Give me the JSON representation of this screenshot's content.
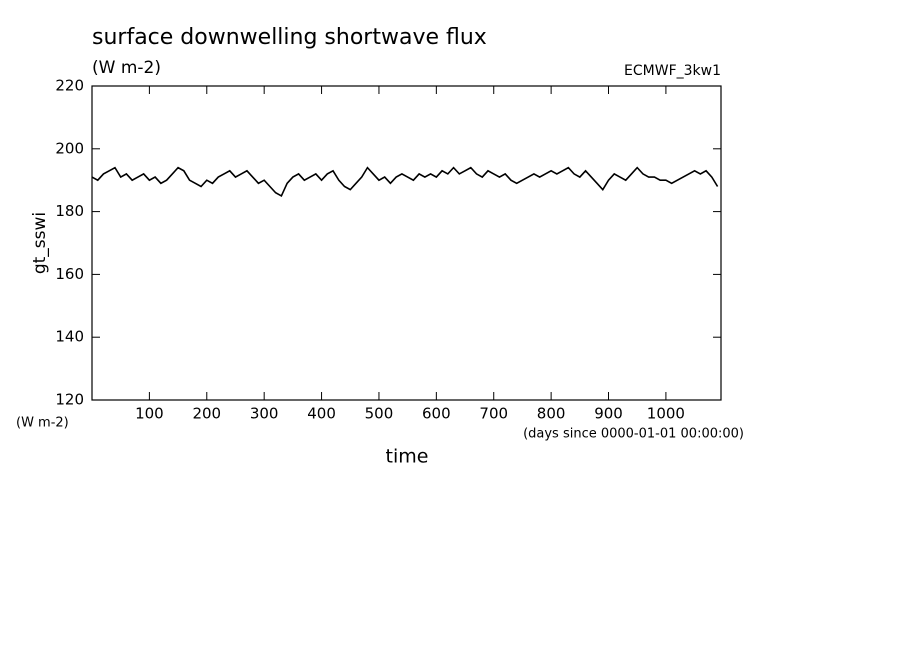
{
  "chart_data": {
    "type": "line",
    "title": "surface downwelling shortwave flux",
    "subtitle": "(W m-2)",
    "annotation": "ECMWF_3kw1",
    "ylabel": "gt_sswi",
    "y_unit": "(W m-2)",
    "xlabel": "time",
    "x_unit": "(days since 0000-01-01 00:00:00)",
    "color": "#000000",
    "x": [
      0,
      10,
      20,
      30,
      40,
      50,
      60,
      70,
      80,
      90,
      100,
      110,
      120,
      130,
      140,
      150,
      160,
      170,
      180,
      190,
      200,
      210,
      220,
      230,
      240,
      250,
      260,
      270,
      280,
      290,
      300,
      310,
      320,
      330,
      340,
      350,
      360,
      370,
      380,
      390,
      400,
      410,
      420,
      430,
      440,
      450,
      460,
      470,
      480,
      490,
      500,
      510,
      520,
      530,
      540,
      550,
      560,
      570,
      580,
      590,
      600,
      610,
      620,
      630,
      640,
      650,
      660,
      670,
      680,
      690,
      700,
      710,
      720,
      730,
      740,
      750,
      760,
      770,
      780,
      790,
      800,
      810,
      820,
      830,
      840,
      850,
      860,
      870,
      880,
      890,
      900,
      910,
      920,
      930,
      940,
      950,
      960,
      970,
      980,
      990,
      1000,
      1010,
      1020,
      1030,
      1040,
      1050,
      1060,
      1070,
      1080,
      1090
    ],
    "values": [
      191,
      190,
      192,
      193,
      194,
      191,
      192,
      190,
      191,
      192,
      190,
      191,
      189,
      190,
      192,
      194,
      193,
      190,
      189,
      188,
      190,
      189,
      191,
      192,
      193,
      191,
      192,
      193,
      191,
      189,
      190,
      188,
      186,
      185,
      189,
      191,
      192,
      190,
      191,
      192,
      190,
      192,
      193,
      190,
      188,
      187,
      189,
      191,
      194,
      192,
      190,
      191,
      189,
      191,
      192,
      191,
      190,
      192,
      191,
      192,
      191,
      193,
      192,
      194,
      192,
      193,
      194,
      192,
      191,
      193,
      192,
      191,
      192,
      190,
      189,
      190,
      191,
      192,
      191,
      192,
      193,
      192,
      193,
      194,
      192,
      191,
      193,
      191,
      189,
      187,
      190,
      192,
      191,
      190,
      192,
      194,
      192,
      191,
      191,
      190,
      190,
      189,
      190,
      191,
      192,
      193,
      192,
      193,
      191,
      188
    ],
    "xlim": [
      0,
      1096
    ],
    "ylim": [
      120,
      220
    ],
    "xticks": [
      100,
      200,
      300,
      400,
      500,
      600,
      700,
      800,
      900,
      1000
    ],
    "yticks": [
      120,
      140,
      160,
      180,
      200,
      220
    ]
  }
}
